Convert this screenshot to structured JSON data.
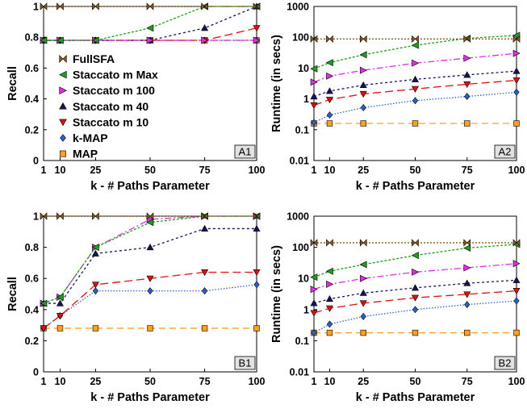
{
  "legend": [
    {
      "label": "FullSFA",
      "color": "#8a5a1e",
      "marker": "bowtie",
      "dash": "2,2"
    },
    {
      "label": "Staccato m Max",
      "color": "#1e9e1e",
      "marker": "triangle-left",
      "dash": "3,2"
    },
    {
      "label": "Staccato m 100",
      "color": "#e22ee2",
      "marker": "triangle-right",
      "dash": "8,3,2,3"
    },
    {
      "label": "Staccato m 40",
      "color": "#14145a",
      "marker": "triangle-up",
      "dash": "3,3"
    },
    {
      "label": "Staccato m 10",
      "color": "#e01010",
      "marker": "triangle-down",
      "dash": "10,5"
    },
    {
      "label": "k-MAP",
      "color": "#2a62cc",
      "marker": "diamond",
      "dash": "1.5,2"
    },
    {
      "label": "MAP",
      "color": "#ffa020",
      "marker": "square",
      "dash": "8,5"
    }
  ],
  "chart_data": [
    {
      "id": "A1",
      "type": "line",
      "tag": "A1",
      "xlabel": "k - # Paths Parameter",
      "ylabel": "Recall",
      "x": [
        1,
        10,
        25,
        50,
        75,
        100
      ],
      "ylim": [
        0,
        1
      ],
      "yscale": "linear",
      "yticks": [
        "0",
        "0.2",
        "0.4",
        "0.6",
        "0.8",
        "1"
      ],
      "show_legend": true,
      "series": [
        {
          "name": "FullSFA",
          "values": [
            1,
            1,
            1,
            1,
            1,
            1
          ]
        },
        {
          "name": "Staccato m Max",
          "values": [
            0.78,
            0.78,
            0.78,
            0.86,
            1,
            1
          ]
        },
        {
          "name": "Staccato m 100",
          "values": [
            0.78,
            0.78,
            0.78,
            0.78,
            0.78,
            0.78
          ]
        },
        {
          "name": "Staccato m 40",
          "values": [
            0.78,
            0.78,
            0.78,
            0.78,
            0.86,
            1
          ]
        },
        {
          "name": "Staccato m 10",
          "values": [
            0.78,
            0.78,
            0.78,
            0.78,
            0.78,
            0.86
          ]
        },
        {
          "name": "k-MAP",
          "values": [
            0.78,
            0.78,
            0.78,
            0.78,
            0.78,
            0.78
          ]
        },
        {
          "name": "MAP",
          "values": [
            0.78,
            0.78,
            0.78,
            0.78,
            0.78,
            0.78
          ]
        }
      ]
    },
    {
      "id": "A2",
      "type": "line",
      "tag": "A2",
      "xlabel": "k - # Paths Parameter",
      "ylabel": "Runtime (in secs)",
      "x": [
        1,
        10,
        25,
        50,
        75,
        100
      ],
      "ylim": [
        0.01,
        1000
      ],
      "yscale": "log",
      "yticks": [
        "0.01",
        "0.1",
        "1",
        "10",
        "100",
        "1000"
      ],
      "show_legend": false,
      "series": [
        {
          "name": "FullSFA",
          "values": [
            88,
            88,
            88,
            88,
            88,
            88
          ]
        },
        {
          "name": "Staccato m Max",
          "values": [
            9.5,
            15,
            27,
            55,
            92,
            115
          ]
        },
        {
          "name": "Staccato m 100",
          "values": [
            3.5,
            5.5,
            8.5,
            14.5,
            21,
            30
          ]
        },
        {
          "name": "Staccato m 40",
          "values": [
            1.2,
            1.8,
            2.8,
            4.3,
            6,
            8
          ]
        },
        {
          "name": "Staccato m 10",
          "values": [
            0.62,
            0.95,
            1.45,
            2.1,
            3,
            4
          ]
        },
        {
          "name": "k-MAP",
          "values": [
            0.17,
            0.3,
            0.52,
            0.88,
            1.2,
            1.65
          ]
        },
        {
          "name": "MAP",
          "values": [
            0.16,
            0.16,
            0.16,
            0.16,
            0.16,
            0.16
          ]
        }
      ]
    },
    {
      "id": "B1",
      "type": "line",
      "tag": "B1",
      "xlabel": "k - # Paths Parameter",
      "ylabel": "Recall",
      "x": [
        1,
        10,
        25,
        50,
        75,
        100
      ],
      "ylim": [
        0,
        1
      ],
      "yscale": "linear",
      "yticks": [
        "0",
        "0.2",
        "0.4",
        "0.6",
        "0.8",
        "1"
      ],
      "show_legend": false,
      "series": [
        {
          "name": "FullSFA",
          "values": [
            1,
            1,
            1,
            1,
            1,
            1
          ]
        },
        {
          "name": "Staccato m Max",
          "values": [
            0.44,
            0.48,
            0.8,
            0.96,
            1,
            1
          ]
        },
        {
          "name": "Staccato m 100",
          "values": [
            0.44,
            0.48,
            0.8,
            0.98,
            1,
            1
          ]
        },
        {
          "name": "Staccato m 40",
          "values": [
            0.44,
            0.44,
            0.76,
            0.8,
            0.92,
            0.92
          ]
        },
        {
          "name": "Staccato m 10",
          "values": [
            0.28,
            0.36,
            0.56,
            0.6,
            0.64,
            0.64
          ]
        },
        {
          "name": "k-MAP",
          "values": [
            0.28,
            0.36,
            0.52,
            0.52,
            0.52,
            0.56
          ]
        },
        {
          "name": "MAP",
          "values": [
            0.28,
            0.28,
            0.28,
            0.28,
            0.28,
            0.28
          ]
        }
      ]
    },
    {
      "id": "B2",
      "type": "line",
      "tag": "B2",
      "xlabel": "k - # Paths Parameter",
      "ylabel": "Runtime (in secs)",
      "x": [
        1,
        10,
        25,
        50,
        75,
        100
      ],
      "ylim": [
        0.01,
        1000
      ],
      "yscale": "log",
      "yticks": [
        "0.01",
        "0.1",
        "1",
        "10",
        "100",
        "1000"
      ],
      "show_legend": false,
      "series": [
        {
          "name": "FullSFA",
          "values": [
            140,
            140,
            140,
            140,
            140,
            140
          ]
        },
        {
          "name": "Staccato m Max",
          "values": [
            11,
            17,
            28,
            55,
            95,
            125
          ]
        },
        {
          "name": "Staccato m 100",
          "values": [
            4.5,
            6.5,
            10,
            16,
            22,
            30
          ]
        },
        {
          "name": "Staccato m 40",
          "values": [
            1.6,
            2.2,
            3.4,
            5,
            7,
            8.8
          ]
        },
        {
          "name": "Staccato m 10",
          "values": [
            0.78,
            1.1,
            1.6,
            2.4,
            3.1,
            4
          ]
        },
        {
          "name": "k-MAP",
          "values": [
            0.18,
            0.34,
            0.6,
            1.0,
            1.45,
            1.9
          ]
        },
        {
          "name": "MAP",
          "values": [
            0.18,
            0.18,
            0.18,
            0.18,
            0.18,
            0.18
          ]
        }
      ]
    }
  ]
}
